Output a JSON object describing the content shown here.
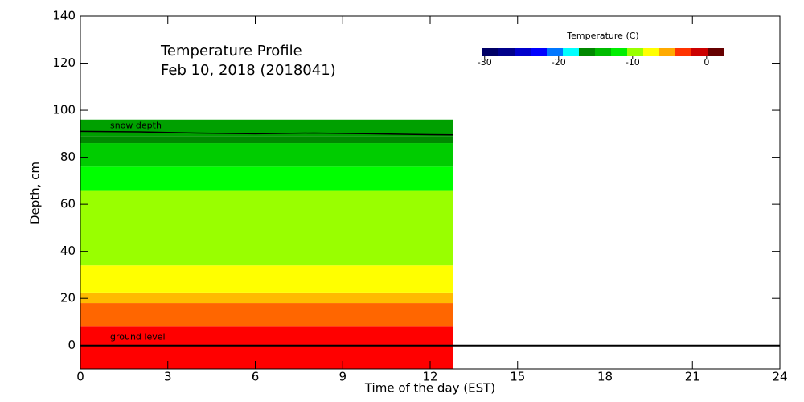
{
  "chart_data": {
    "type": "heatmap",
    "title": "Temperature Profile",
    "subtitle": "Feb 10, 2018 (2018041)",
    "x_label": "Time of the day (EST)",
    "y_label": "Depth, cm",
    "xlim": [
      0,
      24
    ],
    "xticks": [
      0,
      3,
      6,
      9,
      12,
      15,
      18,
      21,
      24
    ],
    "ylim": [
      -10,
      140
    ],
    "yticks": [
      0,
      20,
      40,
      60,
      80,
      100,
      120,
      140
    ],
    "bands": [
      {
        "depth": [
          -10,
          8
        ],
        "time": [
          0,
          12.8
        ],
        "color": "#ff0000"
      },
      {
        "depth": [
          8,
          18
        ],
        "time": [
          0,
          12.8
        ],
        "color": "#ff6600"
      },
      {
        "depth": [
          18,
          22.5
        ],
        "time": [
          0,
          12.8
        ],
        "color": "#ffbb00"
      },
      {
        "depth": [
          22.5,
          34
        ],
        "time": [
          0,
          12.8
        ],
        "color": "#ffff00"
      },
      {
        "depth": [
          34,
          66
        ],
        "time": [
          0,
          12.8
        ],
        "color": "#99ff00"
      },
      {
        "depth": [
          66,
          76
        ],
        "time": [
          0,
          12.8
        ],
        "color": "#00ff00"
      },
      {
        "depth": [
          76,
          86
        ],
        "time": [
          0,
          12.8
        ],
        "color": "#00cc00"
      },
      {
        "depth": [
          86,
          89
        ],
        "time": [
          0,
          12.8
        ],
        "color": "#008800"
      },
      {
        "depth": [
          89,
          96
        ],
        "time": [
          0,
          12.8
        ],
        "color": "#00a000"
      }
    ],
    "snow_depth": {
      "name": "snow depth",
      "x": [
        0,
        2,
        4,
        6,
        8,
        10,
        12,
        12.8
      ],
      "values": [
        91,
        90.8,
        90.3,
        90,
        90.3,
        90,
        89.6,
        89.5
      ]
    },
    "ground_level": {
      "name": "ground level",
      "value": 0
    },
    "colorbar": {
      "title": "Temperature (C)",
      "lim": [
        -30.3,
        2.3
      ],
      "ticks": [
        -30,
        -20,
        -10,
        0
      ],
      "colors": [
        "#000066",
        "#00008b",
        "#0000cc",
        "#0000ff",
        "#0077ff",
        "#00ffff",
        "#008800",
        "#00bb00",
        "#00ee00",
        "#99ff00",
        "#ffff00",
        "#ffaa00",
        "#ff3300",
        "#cc0000",
        "#660000"
      ]
    }
  }
}
